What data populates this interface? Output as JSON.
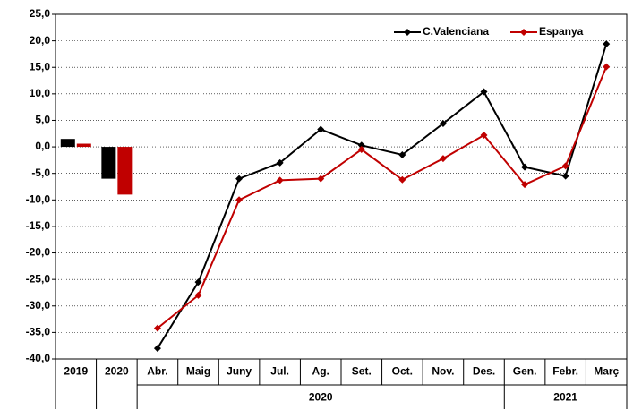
{
  "chart_data": {
    "type": "combo",
    "categories": [
      "2019",
      "2020",
      "Abr.",
      "Maig",
      "Juny",
      "Jul.",
      "Ag.",
      "Set.",
      "Oct.",
      "Nov.",
      "Des.",
      "Gen.",
      "Febr.",
      "Març"
    ],
    "groups": [
      {
        "label": "2020",
        "span": 9
      },
      {
        "label": "2021",
        "span": 3
      }
    ],
    "series": [
      {
        "name": "C.Valenciana",
        "color": "#000000",
        "bar_values": [
          1.5,
          -6.0,
          null,
          null,
          null,
          null,
          null,
          null,
          null,
          null,
          null,
          null,
          null,
          null
        ],
        "values": [
          null,
          null,
          -38.0,
          -25.5,
          -6.0,
          -3.0,
          3.3,
          0.3,
          -1.5,
          4.4,
          10.4,
          -3.8,
          -5.5,
          19.4
        ]
      },
      {
        "name": "Espanya",
        "color": "#c00000",
        "bar_values": [
          0.6,
          -9.0,
          null,
          null,
          null,
          null,
          null,
          null,
          null,
          null,
          null,
          null,
          null,
          null
        ],
        "values": [
          null,
          null,
          -34.2,
          -28.0,
          -10.0,
          -6.3,
          -6.0,
          -0.5,
          -6.2,
          -2.2,
          2.2,
          -7.1,
          -3.6,
          15.1
        ]
      }
    ],
    "ylim": [
      -40,
      25
    ],
    "yticks": [
      {
        "value": -40,
        "label": "-40,0"
      },
      {
        "value": -35,
        "label": "-35,0"
      },
      {
        "value": -30,
        "label": "-30,0"
      },
      {
        "value": -25,
        "label": "-25,0"
      },
      {
        "value": -20,
        "label": "-20,0"
      },
      {
        "value": -15,
        "label": "-15,0"
      },
      {
        "value": -10,
        "label": "-10,0"
      },
      {
        "value": -5,
        "label": "-5,0"
      },
      {
        "value": 0,
        "label": "0,0"
      },
      {
        "value": 5,
        "label": "5,0"
      },
      {
        "value": 10,
        "label": "10,0"
      },
      {
        "value": 15,
        "label": "15,0"
      },
      {
        "value": 20,
        "label": "20,0"
      },
      {
        "value": 25,
        "label": "25,0"
      }
    ],
    "grid": true,
    "legend": "upper right"
  }
}
